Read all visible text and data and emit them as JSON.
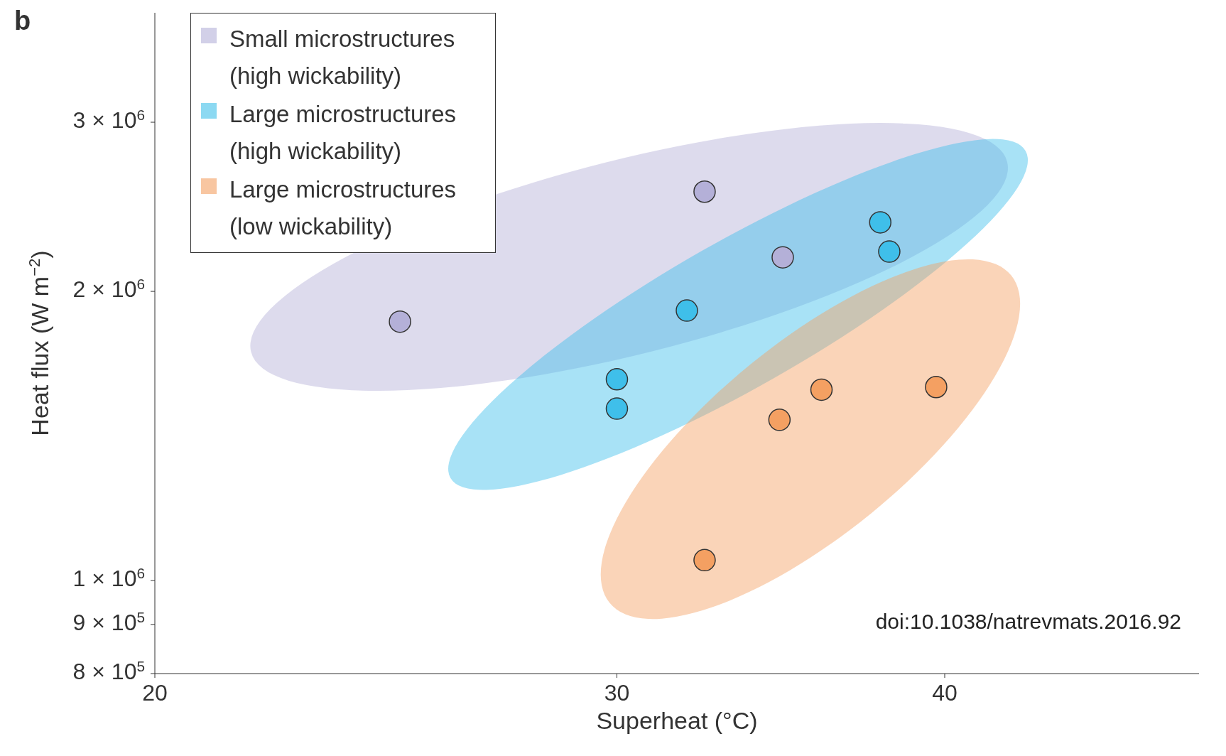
{
  "chart_data": {
    "type": "scatter",
    "xlabel": "Superheat (°C)",
    "ylabel": "Heat flux (W m$^{−2}$)",
    "log": "xy",
    "xlim": [
      20,
      50
    ],
    "xticks": [
      20,
      30,
      40
    ],
    "ylim": [
      800000,
      3900000
    ],
    "yticks": [
      {
        "value": 800000,
        "label": "8 × 10$^{5}$"
      },
      {
        "value": 900000,
        "label": "9 × 10$^{5}$"
      },
      {
        "value": 1000000,
        "label": "1 × 10$^{6}$"
      },
      {
        "value": 2000000,
        "label": "2 × 10$^{6}$"
      },
      {
        "value": 3000000,
        "label": "3 × 10$^{6}$"
      }
    ],
    "grid": false,
    "legend": "top left",
    "marker": "circle",
    "tick_labels": "xy",
    "annotations": [
      "b",
      "doi:10.1038/natrevmats.2016.92"
    ],
    "series": [
      {
        "name": "Small microstructures (high wickability)",
        "color": "#b4b0d8",
        "x": [
          24.8,
          32.4,
          34.7
        ],
        "values": [
          1860000,
          2540000,
          2170000
        ]
      },
      {
        "name": "Large microstructures (high wickability)",
        "color": "#3fbfea",
        "x": [
          31.9,
          30,
          30,
          37.8,
          38.1
        ],
        "values": [
          1910000,
          1620000,
          1510000,
          2360000,
          2200000
        ]
      },
      {
        "name": "Large microstructures (low wickability)",
        "color": "#f4a062",
        "x": [
          32.4,
          34.6,
          35.9,
          39.7
        ],
        "values": [
          1050000,
          1470000,
          1580000,
          1590000
        ]
      }
    ]
  }
}
